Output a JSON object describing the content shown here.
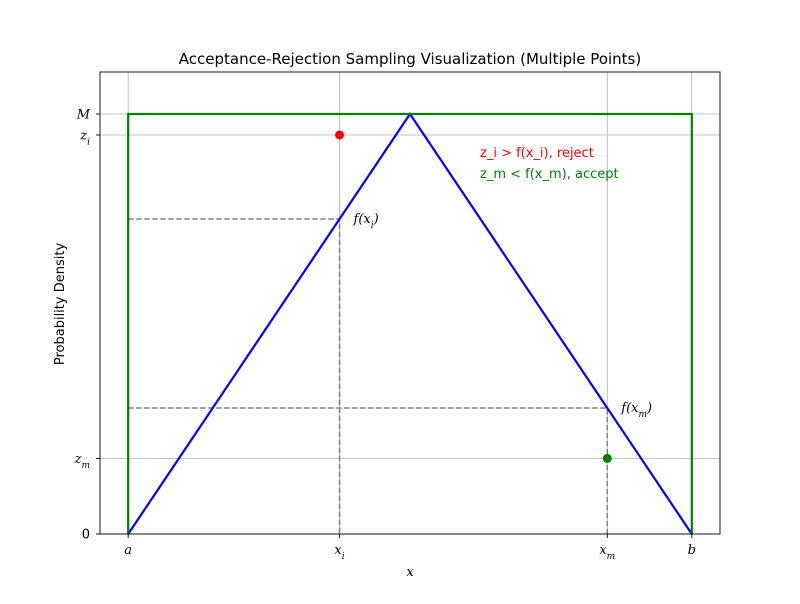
{
  "chart_data": {
    "type": "line",
    "title": "Acceptance-Rejection Sampling Visualization (Multiple Points)",
    "xlabel": "x",
    "ylabel": "Probability Density",
    "xlim": [
      -0.2,
      4.2
    ],
    "ylim": [
      0,
      1.1
    ],
    "grid": true,
    "x_ticks": [
      {
        "value": 0,
        "label": "a"
      },
      {
        "value": 1.5,
        "label": "x_i"
      },
      {
        "value": 3.4,
        "label": "x_m"
      },
      {
        "value": 4,
        "label": "b"
      }
    ],
    "y_ticks": [
      {
        "value": 0,
        "label": "0"
      },
      {
        "value": 0.18,
        "label": "z_m"
      },
      {
        "value": 0.95,
        "label": "z_i"
      },
      {
        "value": 1.0,
        "label": "M"
      }
    ],
    "series": [
      {
        "color": "#0000ff",
        "x": [
          0,
          2,
          4
        ],
        "y": [
          0,
          1.0,
          0
        ]
      },
      {
        "color": "#008000",
        "x": [
          0,
          0,
          4,
          4
        ],
        "y": [
          0,
          1.0,
          1.0,
          0
        ]
      }
    ],
    "guides": [
      {
        "x": [
          0,
          1.5,
          1.5
        ],
        "y": [
          0.75,
          0.75,
          0
        ],
        "color": "#808080"
      },
      {
        "x": [
          0,
          3.4,
          3.4
        ],
        "y": [
          0.3,
          0.3,
          0
        ],
        "color": "#808080"
      }
    ],
    "points": [
      {
        "x": 1.5,
        "y": 0.95,
        "color": "#ff0000"
      },
      {
        "x": 3.4,
        "y": 0.18,
        "color": "#008000"
      }
    ],
    "annotations": [
      {
        "id": "fxi",
        "x": 1.5,
        "y": 0.75,
        "base": "f(x",
        "sub": "i",
        "tail": ")"
      },
      {
        "id": "fxm",
        "x": 3.4,
        "y": 0.3,
        "base": "f(x",
        "sub": "m",
        "tail": ")"
      }
    ],
    "legend_notes": [
      {
        "color": "#ff0000",
        "text": "z_i > f(x_i), reject"
      },
      {
        "color": "#008000",
        "text": "z_m < f(x_m), accept"
      }
    ]
  }
}
